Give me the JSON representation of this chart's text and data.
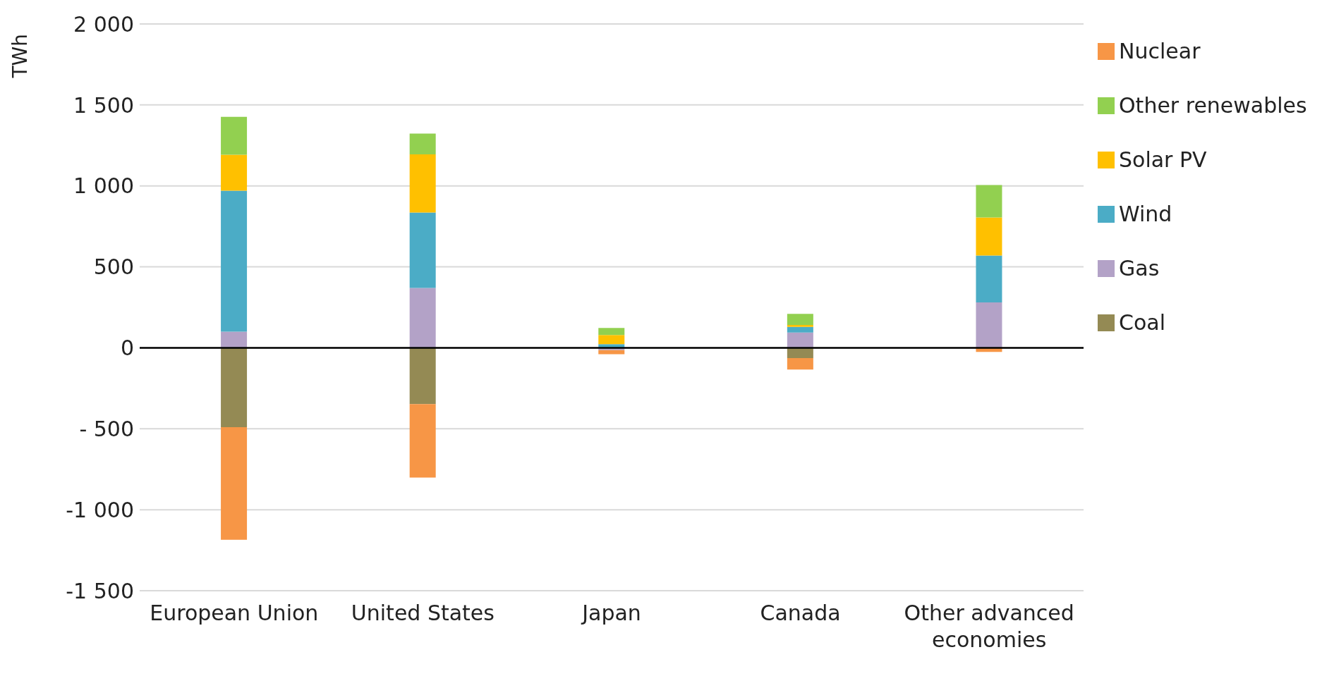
{
  "chart_data": {
    "type": "bar",
    "stacked": true,
    "ylabel": "TWh",
    "categories": [
      "European Union",
      "United States",
      "Japan",
      "Canada",
      "Other advanced economies"
    ],
    "series": [
      {
        "name": "Coal",
        "color": "#948a54",
        "values": [
          -490,
          -347,
          0,
          -63,
          0
        ]
      },
      {
        "name": "Gas",
        "color": "#b3a2c7",
        "values": [
          100,
          370,
          -15,
          94,
          280
        ]
      },
      {
        "name": "Wind",
        "color": "#4bacc6",
        "values": [
          870,
          465,
          23,
          35,
          290
        ]
      },
      {
        "name": "Solar PV",
        "color": "#ffc000",
        "values": [
          222,
          360,
          56,
          12,
          235
        ]
      },
      {
        "name": "Other renewables",
        "color": "#92d050",
        "values": [
          234,
          128,
          44,
          69,
          200
        ]
      },
      {
        "name": "Nuclear",
        "color": "#f79646",
        "values": [
          -695,
          -454,
          -25,
          -71,
          -25
        ]
      }
    ],
    "ylim": [
      -1500,
      2000
    ],
    "yticks": [
      {
        "value": -1500,
        "label": "-1 500"
      },
      {
        "value": -1000,
        "label": "-1 000"
      },
      {
        "value": -500,
        "label": "- 500"
      },
      0,
      500,
      {
        "value": 1000,
        "label": "1 000"
      },
      {
        "value": 1500,
        "label": "1 500"
      },
      {
        "value": 2000,
        "label": "2 000"
      }
    ],
    "grid": "y",
    "legend": "top right"
  }
}
